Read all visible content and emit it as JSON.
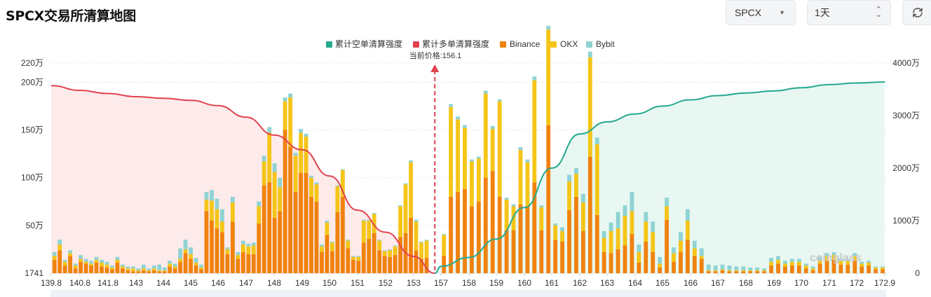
{
  "header": {
    "title": "SPCX交易所清算地图",
    "symbol_select": "SPCX",
    "period_select": "1天",
    "refresh_icon": "refresh-icon"
  },
  "watermark": "coinglass",
  "colors": {
    "short_cum": "#26a88e",
    "long_cum": "#e0424f",
    "binance": "#f0820f",
    "okx": "#f5c518",
    "bybit": "#8fd3d3",
    "short_fill": "#e6f6f1",
    "long_fill": "#fde6e7",
    "price_line": "#e0424f"
  },
  "chart_data": {
    "type": "bar",
    "title": "",
    "legend": [
      "累计空单清算强度",
      "累计多单清算强度",
      "Binance",
      "OKX",
      "Bybit"
    ],
    "legend_position": "top-center",
    "current_price_label": "当前价格:156.1",
    "current_price": 156.1,
    "x_tick_labels": [
      "139.8",
      "140.8",
      "141.8",
      "143",
      "144",
      "145",
      "146",
      "147",
      "148",
      "149",
      "150",
      "151",
      "152",
      "153",
      "157",
      "158",
      "159",
      "160",
      "161",
      "162",
      "163",
      "164",
      "165",
      "166",
      "167",
      "168",
      "169",
      "170",
      "171",
      "172",
      "172.9"
    ],
    "y_left_ticks": [
      "1741",
      "50万",
      "100万",
      "150万",
      "200万",
      "220万"
    ],
    "y_right_ticks": [
      "0",
      "1000万",
      "2000万",
      "3000万",
      "4000万"
    ],
    "y_left_range": [
      0,
      2200000
    ],
    "y_right_range": [
      0,
      40000000
    ],
    "grid": "horizontal-dashed",
    "series": [
      {
        "name": "Binance",
        "values": [
          140000,
          240000,
          80000,
          180000,
          50000,
          120000,
          100000,
          80000,
          110000,
          70000,
          60000,
          40000,
          110000,
          50000,
          30000,
          20000,
          20000,
          30000,
          20000,
          30000,
          20000,
          20000,
          70000,
          50000,
          120000,
          210000,
          150000,
          80000,
          40000,
          650000,
          550000,
          470000,
          430000,
          200000,
          540000,
          150000,
          220000,
          200000,
          200000,
          520000,
          920000,
          950000,
          580000,
          650000,
          1500000,
          1320000,
          850000,
          1050000,
          1050000,
          800000,
          750000,
          220000,
          400000,
          230000,
          640000,
          800000,
          260000,
          140000,
          130000,
          320000,
          360000,
          420000,
          240000,
          180000,
          170000,
          190000,
          380000,
          420000,
          580000,
          240000,
          150000,
          160000,
          180000,
          800000,
          850000,
          880000,
          700000,
          750000,
          1000000,
          1070000,
          800000,
          450000,
          450000,
          720000,
          700000,
          950000,
          450000,
          1550000,
          350000,
          330000,
          660000,
          800000,
          440000,
          1220000,
          610000,
          220000,
          210000,
          250000,
          290000,
          410000,
          110000,
          330000,
          220000,
          60000,
          560000,
          120000,
          220000,
          350000,
          180000,
          150000,
          20000,
          20000,
          30000,
          20000,
          20000,
          20000,
          20000,
          20000,
          20000,
          80000,
          100000,
          70000,
          80000,
          80000,
          50000,
          30000,
          100000,
          130000,
          140000,
          90000,
          90000,
          130000,
          70000,
          80000,
          40000,
          40000
        ],
        "values_okx": [
          40000,
          60000,
          40000,
          30000,
          30000,
          30000,
          20000,
          20000,
          30000,
          40000,
          30000,
          20000,
          30000,
          20000,
          20000,
          30000,
          10000,
          20000,
          10000,
          20000,
          10000,
          10000,
          30000,
          20000,
          30000,
          40000,
          50000,
          30000,
          20000,
          120000,
          210000,
          200000,
          110000,
          50000,
          200000,
          40000,
          80000,
          80000,
          90000,
          180000,
          250000,
          520000,
          480000,
          250000,
          300000,
          520000,
          380000,
          420000,
          380000,
          200000,
          180000,
          60000,
          130000,
          90000,
          270000,
          280000,
          80000,
          30000,
          40000,
          230000,
          190000,
          200000,
          100000,
          50000,
          70000,
          90000,
          320000,
          510000,
          580000,
          300000,
          170000,
          180000,
          220000,
          940000,
          760000,
          640000,
          470000,
          450000,
          880000,
          440000,
          1000000,
          320000,
          250000,
          570000,
          460000,
          1070000,
          240000,
          1000000,
          150000,
          110000,
          300000,
          240000,
          300000,
          1040000,
          740000,
          150000,
          230000,
          220000,
          310000,
          240000,
          110000,
          210000,
          210000,
          40000,
          140000,
          90000,
          120000,
          200000,
          80000,
          30000,
          10000,
          10000,
          10000,
          10000,
          10000,
          10000,
          10000,
          10000,
          10000,
          40000,
          40000,
          30000,
          40000,
          40000,
          30000,
          20000,
          40000,
          50000,
          50000,
          40000,
          40000,
          50000,
          30000,
          30000,
          20000,
          20000
        ],
        "values_bybit": [
          40000,
          50000,
          20000,
          30000,
          20000,
          40000,
          30000,
          30000,
          30000,
          30000,
          30000,
          20000,
          30000,
          20000,
          20000,
          20000,
          20000,
          40000,
          20000,
          30000,
          60000,
          30000,
          30000,
          30000,
          110000,
          100000,
          70000,
          50000,
          30000,
          80000,
          110000,
          110000,
          130000,
          20000,
          60000,
          30000,
          40000,
          30000,
          30000,
          50000,
          60000,
          60000,
          90000,
          100000,
          40000,
          40000,
          30000,
          40000,
          30000,
          20000,
          20000,
          20000,
          20000,
          10000,
          10000,
          10000,
          10000,
          10000,
          10000,
          10000,
          10000,
          10000,
          10000,
          10000,
          10000,
          10000,
          10000,
          10000,
          20000,
          20000,
          10000,
          10000,
          10000,
          30000,
          30000,
          30000,
          20000,
          20000,
          30000,
          30000,
          20000,
          20000,
          20000,
          30000,
          30000,
          40000,
          20000,
          40000,
          20000,
          40000,
          70000,
          60000,
          90000,
          60000,
          70000,
          70000,
          90000,
          170000,
          110000,
          200000,
          80000,
          100000,
          110000,
          70000,
          90000,
          60000,
          90000,
          120000,
          80000,
          80000,
          60000,
          50000,
          50000,
          50000,
          40000,
          40000,
          30000,
          30000,
          20000,
          40000,
          40000,
          30000,
          30000,
          30000,
          20000,
          20000,
          30000,
          30000,
          30000,
          20000,
          20000,
          30000,
          20000,
          20000,
          10000,
          10000
        ]
      }
    ],
    "long_cumulative_curve": {
      "name": "累计多单清算强度",
      "x": [
        139.8,
        140.8,
        141.8,
        143,
        144,
        145,
        146,
        147,
        148,
        149,
        150,
        151,
        152,
        153,
        156.1
      ],
      "y": [
        35700000,
        34800000,
        34200000,
        33600000,
        33300000,
        32900000,
        31900000,
        29700000,
        26300000,
        23500000,
        18500000,
        12000000,
        7800000,
        3200000,
        0
      ]
    },
    "short_cumulative_curve": {
      "name": "累计空单清算强度",
      "x": [
        156.1,
        157,
        158,
        159,
        160,
        161,
        162,
        163,
        164,
        165,
        166,
        167,
        168,
        169,
        170,
        171,
        172,
        172.9
      ],
      "y": [
        0,
        1300000,
        3000000,
        6500000,
        12500000,
        20000000,
        26500000,
        28800000,
        30300000,
        31800000,
        33000000,
        33800000,
        34300000,
        34700000,
        35300000,
        35900000,
        36200000,
        36400000
      ]
    }
  }
}
